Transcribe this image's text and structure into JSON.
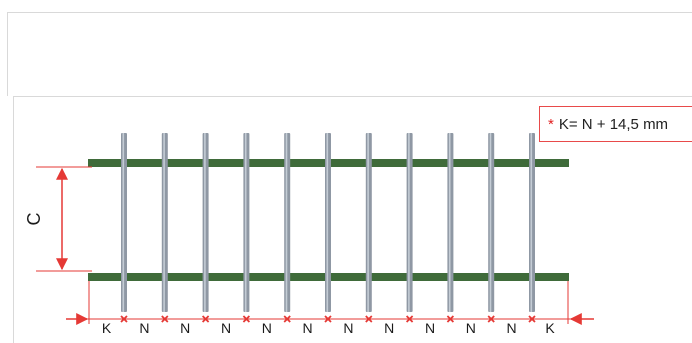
{
  "formula": {
    "star": "*",
    "text": "K= N + 14,5 mm"
  },
  "labels": {
    "height": "C",
    "spacings": [
      "K",
      "N",
      "N",
      "N",
      "N",
      "N",
      "N",
      "N",
      "N",
      "N",
      "N",
      "K"
    ]
  },
  "diagram": {
    "bar_count": 11,
    "rail_count": 2
  },
  "colors": {
    "rail": "#3f6b3a",
    "bar": "#8f98a4",
    "bar_highlight": "#c4ccd5",
    "dimension": "#e53935",
    "frame": "#d9d9d9"
  }
}
